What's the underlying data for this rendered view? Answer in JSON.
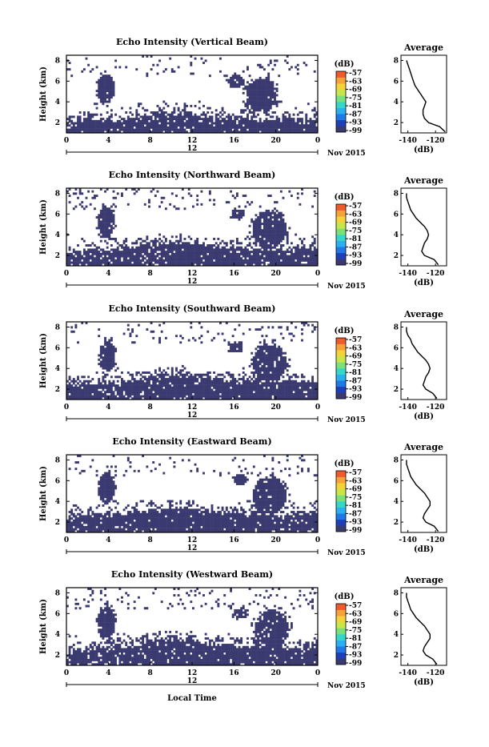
{
  "figure": {
    "xlabel": "Local Time",
    "ylabel": "Height (km)",
    "date_label": "Nov 2015",
    "day_marker": "12",
    "colorbar_unit": "(dB)",
    "avg_title": "Average",
    "avg_xlabel": "(dB)"
  },
  "colors": {
    "background": "#ffffff",
    "echo_fill": "#3a3a70",
    "colorbar": [
      "#3a3a70",
      "#1f3fb8",
      "#1f78e6",
      "#2ab0ef",
      "#36d6c8",
      "#7be07a",
      "#c8e64a",
      "#f4d23a",
      "#f6a23a",
      "#ef5a2c"
    ]
  },
  "chart_data": [
    {
      "type": "heatmap",
      "title": "Echo Intensity (Vertical Beam)",
      "x_ticks": [
        "0",
        "4",
        "8",
        "12",
        "16",
        "20",
        "0"
      ],
      "y_ticks": [
        "2",
        "4",
        "6",
        "8"
      ],
      "xlim": [
        0,
        24
      ],
      "ylim": [
        1,
        8.5
      ],
      "colorbar_ticks": [
        "-57",
        "-63",
        "-69",
        "-75",
        "-81",
        "-87",
        "-93",
        "-99"
      ],
      "profile": {
        "x_ticks": [
          "-140",
          "-120"
        ],
        "y_ticks": [
          "2",
          "4",
          "6",
          "8"
        ],
        "xlim": [
          -145,
          -112
        ],
        "ylim": [
          1,
          8.5
        ],
        "heights": [
          1.1,
          1.6,
          2.0,
          2.4,
          2.8,
          3.2,
          3.6,
          4.0,
          4.4,
          4.8,
          5.2,
          5.6,
          6.0,
          6.4,
          6.8,
          7.2,
          7.6,
          8.0
        ],
        "values": [
          -113,
          -117,
          -125,
          -128,
          -129,
          -129,
          -128,
          -127,
          -129,
          -131,
          -133,
          -135,
          -136,
          -137,
          -138,
          -139,
          -140,
          -141
        ]
      },
      "echo": {
        "cols": 120,
        "boundary_top": [
          2.2,
          2.3,
          2.3,
          2.2,
          2.3,
          2.4,
          2.6,
          2.8,
          3.0,
          2.9,
          2.8,
          2.6,
          2.5,
          2.4,
          2.4,
          2.3,
          2.3,
          2.3,
          2.3,
          2.4
        ],
        "blobs": [
          [
            3.8,
            5.3,
            0.8,
            1.4
          ],
          [
            18.6,
            4.6,
            1.5,
            1.6
          ],
          [
            16.2,
            6.0,
            0.8,
            0.6
          ]
        ],
        "speckle": 0.16,
        "seed": 11
      }
    },
    {
      "type": "heatmap",
      "title": "Echo Intensity (Northward Beam)",
      "x_ticks": [
        "0",
        "4",
        "8",
        "12",
        "16",
        "20",
        "0"
      ],
      "y_ticks": [
        "2",
        "4",
        "6",
        "8"
      ],
      "xlim": [
        0,
        24
      ],
      "ylim": [
        1,
        8.5
      ],
      "colorbar_ticks": [
        "-57",
        "-63",
        "-69",
        "-75",
        "-81",
        "-87",
        "-93",
        "-99"
      ],
      "profile": {
        "x_ticks": [
          "-140",
          "-120"
        ],
        "y_ticks": [
          "2",
          "4",
          "6",
          "8"
        ],
        "xlim": [
          -145,
          -112
        ],
        "ylim": [
          1,
          8.5
        ],
        "heights": [
          1.1,
          1.6,
          2.0,
          2.4,
          2.8,
          3.2,
          3.6,
          4.0,
          4.4,
          4.8,
          5.2,
          5.6,
          6.0,
          6.4,
          6.8,
          7.2,
          7.6,
          8.0
        ],
        "values": [
          -118,
          -121,
          -128,
          -130,
          -129,
          -128,
          -126,
          -125,
          -126,
          -128,
          -131,
          -134,
          -136,
          -138,
          -139,
          -140,
          -141,
          -141
        ]
      },
      "echo": {
        "cols": 120,
        "boundary_top": [
          2.4,
          2.5,
          2.5,
          2.5,
          2.6,
          2.8,
          3.0,
          3.2,
          3.3,
          3.2,
          3.0,
          2.9,
          2.8,
          2.8,
          2.7,
          2.7,
          2.6,
          2.6,
          2.6,
          2.7
        ],
        "blobs": [
          [
            3.8,
            5.2,
            0.8,
            1.5
          ],
          [
            19.4,
            4.5,
            1.6,
            1.7
          ],
          [
            16.4,
            6.0,
            0.7,
            0.5
          ]
        ],
        "speckle": 0.18,
        "seed": 23
      }
    },
    {
      "type": "heatmap",
      "title": "Echo Intensity (Southward Beam)",
      "x_ticks": [
        "0",
        "4",
        "8",
        "12",
        "16",
        "20",
        "0"
      ],
      "y_ticks": [
        "2",
        "4",
        "6",
        "8"
      ],
      "xlim": [
        0,
        24
      ],
      "ylim": [
        1,
        8.5
      ],
      "colorbar_ticks": [
        "-57",
        "-63",
        "-69",
        "-75",
        "-81",
        "-87",
        "-93",
        "-99"
      ],
      "profile": {
        "x_ticks": [
          "-140",
          "-120"
        ],
        "y_ticks": [
          "2",
          "4",
          "6",
          "8"
        ],
        "xlim": [
          -145,
          -112
        ],
        "ylim": [
          1,
          8.5
        ],
        "heights": [
          1.1,
          1.6,
          2.0,
          2.4,
          2.8,
          3.2,
          3.6,
          4.0,
          4.4,
          4.8,
          5.2,
          5.6,
          6.0,
          6.4,
          6.8,
          7.2,
          7.6,
          8.0
        ],
        "values": [
          -119,
          -122,
          -127,
          -129,
          -128,
          -127,
          -125,
          -124,
          -125,
          -127,
          -130,
          -133,
          -135,
          -137,
          -138,
          -140,
          -141,
          -141
        ]
      },
      "echo": {
        "cols": 120,
        "boundary_top": [
          2.4,
          2.5,
          2.6,
          2.6,
          2.7,
          2.9,
          3.1,
          3.3,
          3.4,
          3.3,
          3.1,
          3.0,
          2.9,
          2.9,
          2.8,
          2.8,
          2.7,
          2.7,
          2.7,
          2.8
        ],
        "blobs": [
          [
            3.9,
            5.2,
            0.8,
            1.5
          ],
          [
            19.4,
            4.5,
            1.6,
            1.7
          ],
          [
            16.2,
            6.0,
            0.7,
            0.5
          ]
        ],
        "speckle": 0.18,
        "seed": 37
      }
    },
    {
      "type": "heatmap",
      "title": "Echo Intensity (Eastward Beam)",
      "x_ticks": [
        "0",
        "4",
        "8",
        "12",
        "16",
        "20",
        "0"
      ],
      "y_ticks": [
        "2",
        "4",
        "6",
        "8"
      ],
      "xlim": [
        0,
        24
      ],
      "ylim": [
        1,
        8.5
      ],
      "colorbar_ticks": [
        "-57",
        "-63",
        "-69",
        "-75",
        "-81",
        "-87",
        "-93",
        "-99"
      ],
      "profile": {
        "x_ticks": [
          "-140",
          "-120"
        ],
        "y_ticks": [
          "2",
          "4",
          "6",
          "8"
        ],
        "xlim": [
          -145,
          -112
        ],
        "ylim": [
          1,
          8.5
        ],
        "heights": [
          1.1,
          1.6,
          2.0,
          2.4,
          2.8,
          3.2,
          3.6,
          4.0,
          4.4,
          4.8,
          5.2,
          5.6,
          6.0,
          6.4,
          6.8,
          7.2,
          7.6,
          8.0
        ],
        "values": [
          -118,
          -121,
          -127,
          -129,
          -128,
          -126,
          -124,
          -124,
          -126,
          -128,
          -131,
          -134,
          -136,
          -138,
          -139,
          -140,
          -141,
          -141
        ]
      },
      "echo": {
        "cols": 120,
        "boundary_top": [
          2.4,
          2.5,
          2.6,
          2.6,
          2.7,
          2.9,
          3.1,
          3.3,
          3.4,
          3.3,
          3.1,
          3.0,
          2.9,
          2.9,
          2.8,
          2.8,
          2.7,
          2.7,
          2.7,
          2.8
        ],
        "blobs": [
          [
            3.8,
            5.3,
            0.8,
            1.5
          ],
          [
            19.4,
            4.5,
            1.6,
            1.7
          ],
          [
            16.6,
            6.1,
            0.7,
            0.5
          ]
        ],
        "speckle": 0.18,
        "seed": 51
      }
    },
    {
      "type": "heatmap",
      "title": "Echo Intensity (Westward Beam)",
      "x_ticks": [
        "0",
        "4",
        "8",
        "12",
        "16",
        "20",
        "0"
      ],
      "y_ticks": [
        "2",
        "4",
        "6",
        "8"
      ],
      "xlim": [
        0,
        24
      ],
      "ylim": [
        1,
        8.5
      ],
      "colorbar_ticks": [
        "-57",
        "-63",
        "-69",
        "-75",
        "-81",
        "-87",
        "-93",
        "-99"
      ],
      "profile": {
        "x_ticks": [
          "-140",
          "-120"
        ],
        "y_ticks": [
          "2",
          "4",
          "6",
          "8"
        ],
        "xlim": [
          -145,
          -112
        ],
        "ylim": [
          1,
          8.5
        ],
        "heights": [
          1.1,
          1.6,
          2.0,
          2.4,
          2.8,
          3.2,
          3.6,
          4.0,
          4.4,
          4.8,
          5.2,
          5.6,
          6.0,
          6.4,
          6.8,
          7.2,
          7.6,
          8.0
        ],
        "values": [
          -119,
          -122,
          -127,
          -129,
          -128,
          -126,
          -124,
          -124,
          -126,
          -128,
          -131,
          -134,
          -136,
          -138,
          -139,
          -140,
          -141,
          -141
        ]
      },
      "echo": {
        "cols": 120,
        "boundary_top": [
          2.4,
          2.5,
          2.6,
          2.6,
          2.8,
          3.0,
          3.3,
          3.5,
          3.6,
          3.5,
          3.3,
          3.1,
          3.0,
          2.9,
          2.9,
          2.8,
          2.8,
          2.7,
          2.7,
          2.8
        ],
        "blobs": [
          [
            3.8,
            5.2,
            0.8,
            1.6
          ],
          [
            19.6,
            4.6,
            1.6,
            1.8
          ],
          [
            16.6,
            6.0,
            0.7,
            0.5
          ]
        ],
        "speckle": 0.18,
        "seed": 67
      }
    }
  ]
}
